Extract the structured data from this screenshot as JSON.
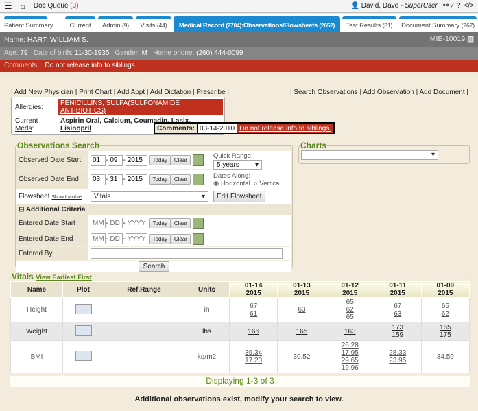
{
  "topbar": {
    "doc_queue": "Doc Queue",
    "doc_queue_count": "(3)",
    "user": "David, Dave - ",
    "role": "SuperUser"
  },
  "tabs": [
    {
      "label": "Patient Summary",
      "count": ""
    },
    {
      "label": "Current",
      "count": ""
    },
    {
      "label": "Admin",
      "count": "(9)"
    },
    {
      "label": "Visits",
      "count": "(44)"
    },
    {
      "label": "Medical Record",
      "count": "(2704)",
      "sub": ":Observations/Flowsheets",
      "subcount": "(2652)"
    },
    {
      "label": "Test Results",
      "count": "(81)"
    },
    {
      "label": "Document Summary",
      "count": "(267)"
    }
  ],
  "patient": {
    "name_label": "Name:",
    "name": "HART, WILLIAM S.",
    "mrn": "MIE-10019",
    "age_label": "Age:",
    "age": "79",
    "dob_label": "Date of birth:",
    "dob": "11-30-1935",
    "gender_label": "Gender:",
    "gender": "M",
    "phone_label": "Home phone:",
    "phone": "(260) 444-0099",
    "comments_label": "Comments:",
    "comments": "Do not release info to siblings."
  },
  "links_left": [
    "Add New Physician",
    "Print Chart",
    "Add Appt",
    "Add Dictation",
    "Prescribe"
  ],
  "links_right": [
    "Search Observations",
    "Add Observation",
    "Add Document"
  ],
  "allergies": {
    "label": "Allergies",
    "value": "PENICILLINS, SULFA(SULFONAMIDE ANTIBIOTICS)"
  },
  "meds": {
    "label": "Current Meds",
    "items": [
      "Aspirin Oral",
      "Calcium",
      "Coumadin",
      "Lasix",
      "Lisinopril"
    ]
  },
  "comment_box": {
    "label": "Comments:",
    "date": "03-14-2010",
    "text": "Do not release info to siblings."
  },
  "search": {
    "title": "Observations Search",
    "obs_start_label": "Observed Date Start",
    "obs_start": [
      "01",
      "09",
      "2015"
    ],
    "obs_end_label": "Observed Date End",
    "obs_end": [
      "03",
      "31",
      "2015"
    ],
    "today": "Today",
    "clear": "Clear",
    "quick_range_label": "Quick Range:",
    "quick_range": "5 years",
    "dates_along_label": "Dates Along:",
    "horizontal": "Horizontal",
    "vertical": "Vertical",
    "flowsheet_label": "Flowsheet",
    "show_inactive": "Show Inactive",
    "flowsheet": "Vitals",
    "edit_flowsheet": "Edit Flowsheet",
    "additional": "Additional Criteria",
    "ent_start_label": "Entered Date Start",
    "ent_end_label": "Entered Date End",
    "placeholders": [
      "MM",
      "DD",
      "YYYY"
    ],
    "entered_by_label": "Entered By",
    "search_btn": "Search"
  },
  "charts": {
    "title": "Charts",
    "selected": ""
  },
  "vitals": {
    "title": "Vitals",
    "view_earliest": "View Earliest First",
    "headers": [
      "Name",
      "Plot",
      "Ref.Range",
      "Units"
    ],
    "dates": [
      [
        "01-14",
        "2015"
      ],
      [
        "01-13",
        "2015"
      ],
      [
        "01-12",
        "2015"
      ],
      [
        "01-11",
        "2015"
      ],
      [
        "01-09",
        "2015"
      ]
    ],
    "rows": [
      {
        "name": "Height",
        "units": "in",
        "values": [
          [
            "67",
            "61"
          ],
          [
            "63"
          ],
          [
            "65",
            "62",
            "65"
          ],
          [
            "67",
            "63"
          ],
          [
            "65",
            "62"
          ]
        ]
      },
      {
        "name": "Weight",
        "units": "lbs",
        "values": [
          [
            "166"
          ],
          [
            "165"
          ],
          [
            "163"
          ],
          [
            "173",
            "159"
          ],
          [
            "165",
            "175"
          ]
        ]
      },
      {
        "name": "BMI",
        "units": "kg/m2",
        "values": [
          [
            "39.34",
            "17.20"
          ],
          [
            "30.52"
          ],
          [
            "26.28",
            "17.95",
            "29.65",
            "19.96"
          ],
          [
            "28.33",
            "23.95"
          ],
          [
            "34.59"
          ]
        ]
      }
    ],
    "displaying": "Displaying 1-3 of 3",
    "footer": "Additional observations exist, modify your search to view."
  }
}
